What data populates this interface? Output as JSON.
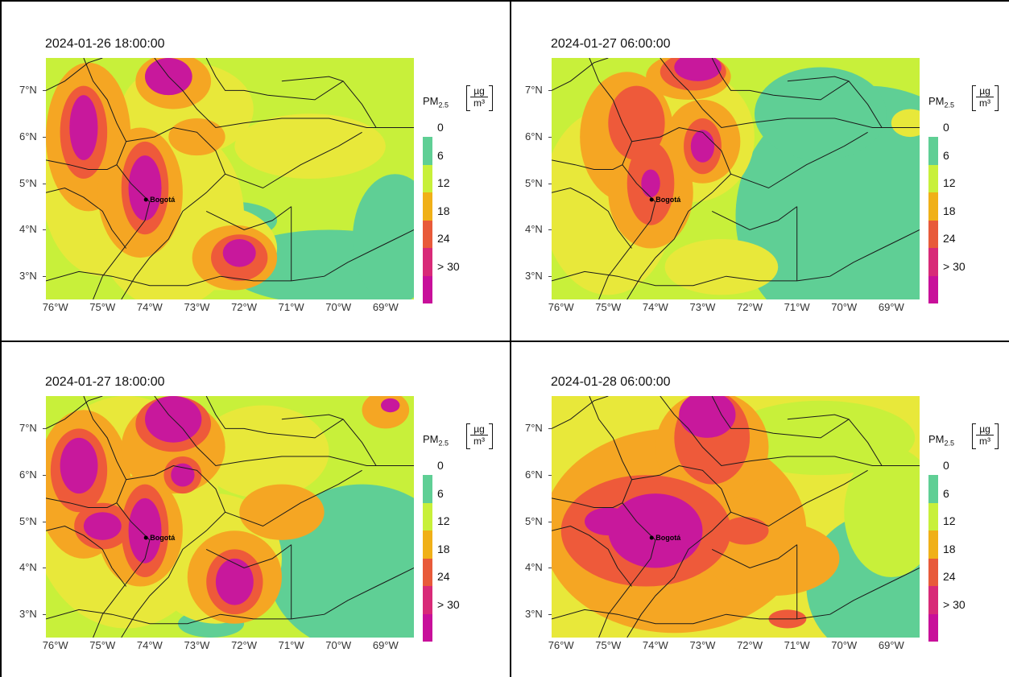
{
  "panels": [
    {
      "title": "2024-01-26 18:00:00"
    },
    {
      "title": "2024-01-27 06:00:00"
    },
    {
      "title": "2024-01-27 18:00:00"
    },
    {
      "title": "2024-01-28 06:00:00"
    }
  ],
  "y_ticks": [
    "7°N",
    "6°N",
    "5°N",
    "4°N",
    "3°N"
  ],
  "x_ticks": [
    "76°W",
    "75°W",
    "74°W",
    "73°W",
    "72°W",
    "71°W",
    "70°W",
    "69°W"
  ],
  "city": "Bogotá",
  "legend": {
    "title_main": "PM",
    "title_sub": "2.5",
    "unit_numerator": "µg",
    "unit_denominator": "m³",
    "labels": [
      "0",
      "6",
      "12",
      "18",
      "24",
      "> 30"
    ],
    "colors": [
      "#5fcf95",
      "#c8f03a",
      "#f0b018",
      "#e85a3a",
      "#d82a78",
      "#c8109a"
    ]
  },
  "colors": {
    "green": "#5fcf95",
    "lime": "#c8f03a",
    "yellow": "#e8e83a",
    "orange": "#f5a623",
    "red": "#ee5a3a",
    "magenta": "#c8189c"
  }
}
